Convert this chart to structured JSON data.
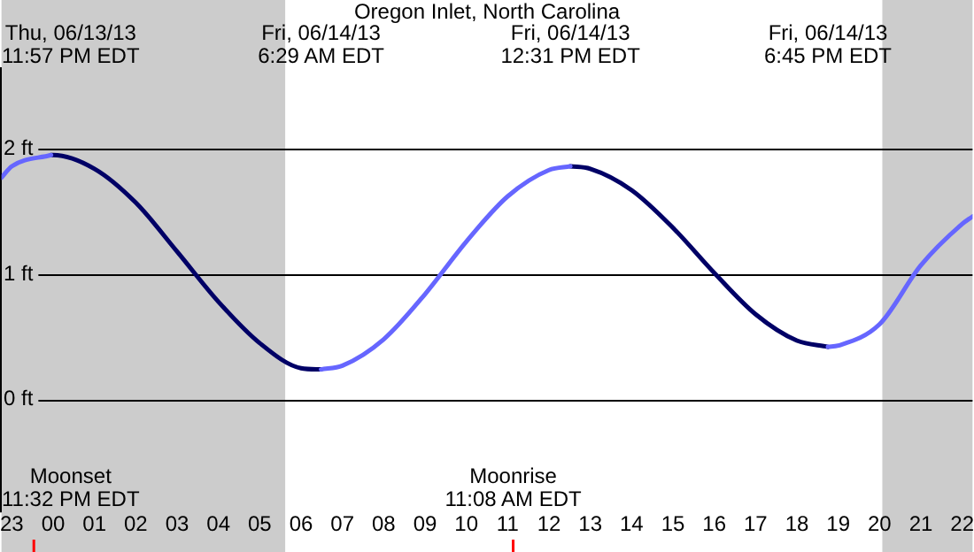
{
  "chart_data": {
    "type": "line",
    "title": "Oregon Inlet, North Carolina",
    "x": [
      "--06-13T22:45",
      "--06-13T23:00",
      "--06-13T23:57",
      "--06-14T00:00",
      "--06-14T01:00",
      "--06-14T02:00",
      "--06-14T03:00",
      "--06-14T04:00",
      "--06-14T05:00",
      "--06-14T06:00",
      "--06-14T06:29",
      "--06-14T07:00",
      "--06-14T08:00",
      "--06-14T09:00",
      "--06-14T10:00",
      "--06-14T11:00",
      "--06-14T12:00",
      "--06-14T12:31",
      "--06-14T13:00",
      "--06-14T14:00",
      "--06-14T15:00",
      "--06-14T16:00",
      "--06-14T17:00",
      "--06-14T18:00",
      "--06-14T18:45",
      "--06-14T19:00",
      "--06-14T20:00",
      "--06-14T21:00",
      "--06-14T22:00",
      "--06-14T22:15"
    ],
    "series": [
      {
        "color": "#6666ff",
        "values": [
          1.77,
          1.86,
          1.95,
          null,
          null,
          null,
          null,
          null,
          null,
          null,
          0.24,
          0.27,
          0.48,
          0.84,
          1.26,
          1.62,
          1.83,
          1.86,
          null,
          null,
          null,
          null,
          null,
          null,
          0.42,
          0.43,
          0.6,
          1.07,
          1.4,
          1.46
        ]
      },
      {
        "color": "#000066",
        "values": [
          null,
          null,
          1.95,
          1.95,
          1.84,
          1.57,
          1.18,
          0.78,
          0.45,
          0.25,
          0.24,
          null,
          null,
          null,
          null,
          null,
          null,
          1.86,
          1.84,
          1.67,
          1.37,
          1.01,
          0.68,
          0.47,
          0.42,
          null,
          null,
          null,
          null,
          null
        ]
      }
    ],
    "xlim": [
      "--06-13T22:45",
      "--06-14T22:15"
    ],
    "xticks": [
      {
        "value": "--06-13T23:00",
        "label": "23"
      },
      {
        "value": "--06-14T00:00",
        "label": "00"
      },
      {
        "value": "--06-14T01:00",
        "label": "01"
      },
      {
        "value": "--06-14T02:00",
        "label": "02"
      },
      {
        "value": "--06-14T03:00",
        "label": "03"
      },
      {
        "value": "--06-14T04:00",
        "label": "04"
      },
      {
        "value": "--06-14T05:00",
        "label": "05"
      },
      {
        "value": "--06-14T06:00",
        "label": "06"
      },
      {
        "value": "--06-14T07:00",
        "label": "07"
      },
      {
        "value": "--06-14T08:00",
        "label": "08"
      },
      {
        "value": "--06-14T09:00",
        "label": "09"
      },
      {
        "value": "--06-14T10:00",
        "label": "10"
      },
      {
        "value": "--06-14T11:00",
        "label": "11"
      },
      {
        "value": "--06-14T12:00",
        "label": "12"
      },
      {
        "value": "--06-14T13:00",
        "label": "13"
      },
      {
        "value": "--06-14T14:00",
        "label": "14"
      },
      {
        "value": "--06-14T15:00",
        "label": "15"
      },
      {
        "value": "--06-14T16:00",
        "label": "16"
      },
      {
        "value": "--06-14T17:00",
        "label": "17"
      },
      {
        "value": "--06-14T18:00",
        "label": "18"
      },
      {
        "value": "--06-14T19:00",
        "label": "19"
      },
      {
        "value": "--06-14T20:00",
        "label": "20"
      },
      {
        "value": "--06-14T21:00",
        "label": "21"
      },
      {
        "value": "--06-14T22:00",
        "label": "22"
      }
    ],
    "ylim": [
      -0.9,
      2.65
    ],
    "yticks": [
      {
        "value": 0,
        "label": "0 ft"
      },
      {
        "value": 1,
        "label": "1 ft"
      },
      {
        "value": 2,
        "label": "2 ft"
      }
    ],
    "grid": "y",
    "bands": [
      {
        "axis": "x",
        "from": "--06-13T22:45",
        "to": "--06-14T05:37",
        "color": "#cccccc"
      },
      {
        "axis": "x",
        "from": "--06-14T20:04",
        "to": "--06-14T22:15",
        "color": "#cccccc"
      }
    ],
    "ref_lines": [
      {
        "axis": "x",
        "value": "--06-13T23:32",
        "label": "Moonset\n11:32 PM EDT",
        "color": "#ff0000"
      },
      {
        "axis": "x",
        "value": "--06-14T11:08",
        "label": "Moonrise\n11:08 AM EDT",
        "color": "#ff0000"
      }
    ],
    "annotations": [
      "Thu, 06/13/13\n11:57 PM EDT",
      "Fri, 06/14/13\n6:29 AM EDT",
      "Fri, 06/14/13\n12:31 PM EDT",
      "Fri, 06/14/13\n6:45 PM EDT"
    ]
  }
}
